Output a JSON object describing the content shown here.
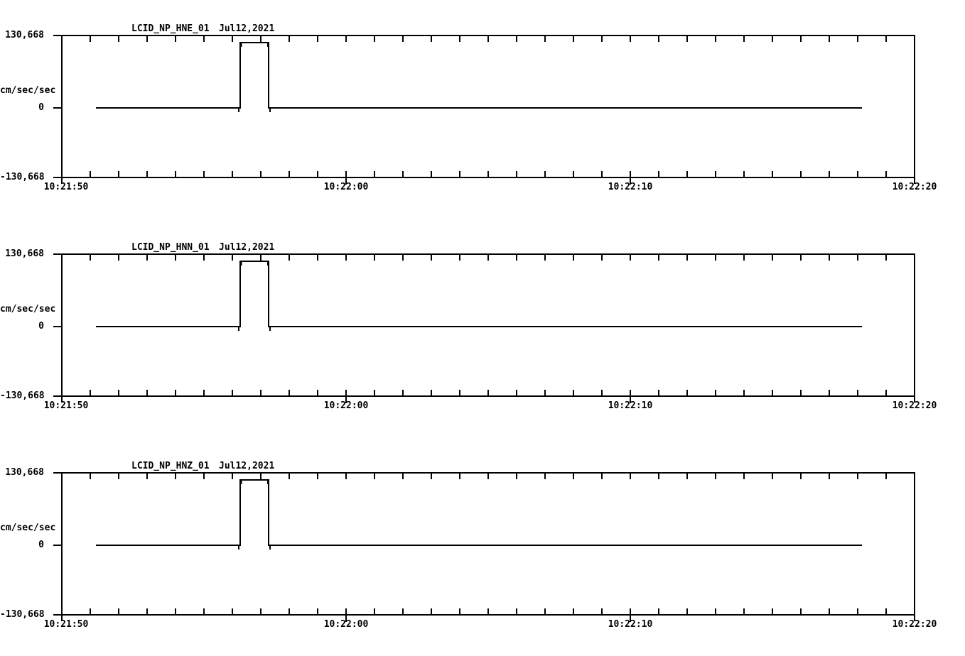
{
  "app": {
    "background_color": "#ffffff",
    "line_color": "#000000",
    "description": "Three-channel seismic strong-motion record display with stacked time-series panels"
  },
  "chart_data": {
    "type": "line",
    "layout": "3 stacked panels, identical shared time axis, grid off, no legend",
    "unit_label": "cm/sec/sec",
    "x_axis": {
      "start_time": "10:21:50",
      "end_time": "10:22:20",
      "duration_seconds": 30,
      "minor_tick_interval_seconds": 1,
      "major_tick_interval_seconds": 10,
      "labels": [
        "10:21:50",
        "10:22:00",
        "10:22:10",
        "10:22:20"
      ],
      "label_offsets_seconds": [
        0,
        10,
        20,
        30
      ]
    },
    "y_axis": {
      "max_label": "130,668",
      "zero_label": "0",
      "min_label": "-130,668",
      "ylim": [
        -130.668,
        130.668
      ]
    },
    "panels": [
      {
        "title": "LCID_NP_HNE_01",
        "date": "Jul12,2021"
      },
      {
        "title": "LCID_NP_HNN_01",
        "date": "Jul12,2021"
      },
      {
        "title": "LCID_NP_HNZ_01",
        "date": "Jul12,2021"
      }
    ],
    "series_note": "All three channels show a flat 0 baseline with a 1-second rectangular calibration pulse of about +118 cm/sec/sec from ~10:21:56.3 to ~10:21:57.3, with small downward notch transients at the pulse onset and offset",
    "waveform_keypoints_t_v": [
      [
        1.2,
        0
      ],
      [
        6.22,
        0
      ],
      [
        6.22,
        -8
      ],
      [
        6.22,
        0
      ],
      [
        6.28,
        0
      ],
      [
        6.28,
        117.9
      ],
      [
        6.31,
        117.9
      ],
      [
        6.31,
        110
      ],
      [
        6.31,
        117.9
      ],
      [
        7.25,
        117.9
      ],
      [
        7.25,
        110
      ],
      [
        7.25,
        117.9
      ],
      [
        7.28,
        117.9
      ],
      [
        7.28,
        0
      ],
      [
        7.33,
        0
      ],
      [
        7.33,
        -8
      ],
      [
        7.33,
        0
      ],
      [
        28.15,
        0
      ]
    ]
  }
}
